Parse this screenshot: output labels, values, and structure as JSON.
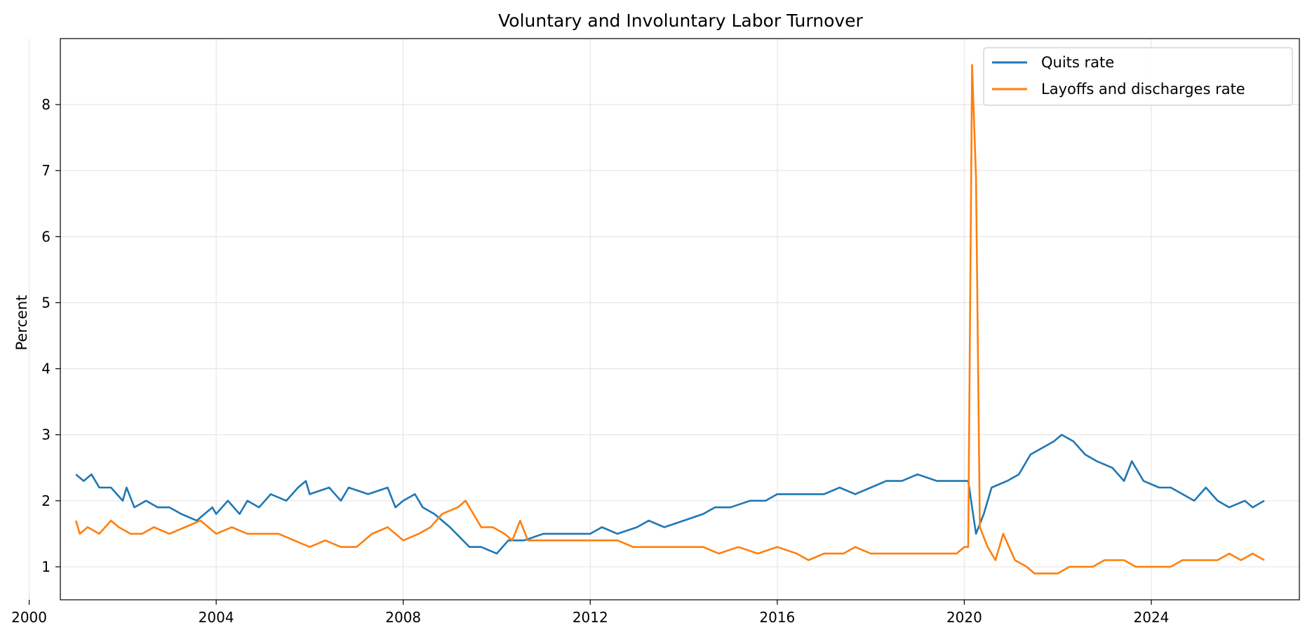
{
  "colors": {
    "quits": "#1f77b4",
    "layoffs": "#ff7f0e",
    "grid": "#e6e6e6",
    "axis": "#000000"
  },
  "chart_data": {
    "type": "line",
    "title": "Voluntary and Involuntary Labor Turnover",
    "xlabel": "",
    "ylabel": "Percent",
    "xlim": [
      "2000-09",
      "2027-03"
    ],
    "ylim": [
      0.5,
      9.0
    ],
    "x_ticks": [
      {
        "label": "2000",
        "value": "2000-01"
      },
      {
        "label": "2004",
        "value": "2004-01"
      },
      {
        "label": "2008",
        "value": "2008-01"
      },
      {
        "label": "2012",
        "value": "2012-01"
      },
      {
        "label": "2016",
        "value": "2016-01"
      },
      {
        "label": "2020",
        "value": "2020-01"
      },
      {
        "label": "2024",
        "value": "2024-01"
      }
    ],
    "y_ticks": [
      {
        "label": "1",
        "value": 1
      },
      {
        "label": "2",
        "value": 2
      },
      {
        "label": "3",
        "value": 3
      },
      {
        "label": "4",
        "value": 4
      },
      {
        "label": "5",
        "value": 5
      },
      {
        "label": "6",
        "value": 6
      },
      {
        "label": "7",
        "value": 7
      },
      {
        "label": "8",
        "value": 8
      }
    ],
    "grid": true,
    "legend_position": "top-right",
    "series": [
      {
        "name": "Quits rate",
        "color": "#1f77b4",
        "points": [
          [
            "2001-01",
            2.4
          ],
          [
            "2001-03",
            2.3
          ],
          [
            "2001-05",
            2.4
          ],
          [
            "2001-07",
            2.2
          ],
          [
            "2001-10",
            2.2
          ],
          [
            "2002-01",
            2.0
          ],
          [
            "2002-02",
            2.2
          ],
          [
            "2002-04",
            1.9
          ],
          [
            "2002-07",
            2.0
          ],
          [
            "2002-10",
            1.9
          ],
          [
            "2003-01",
            1.9
          ],
          [
            "2003-04",
            1.8
          ],
          [
            "2003-08",
            1.7
          ],
          [
            "2003-12",
            1.9
          ],
          [
            "2004-01",
            1.8
          ],
          [
            "2004-04",
            2.0
          ],
          [
            "2004-07",
            1.8
          ],
          [
            "2004-09",
            2.0
          ],
          [
            "2004-12",
            1.9
          ],
          [
            "2005-03",
            2.1
          ],
          [
            "2005-07",
            2.0
          ],
          [
            "2005-10",
            2.2
          ],
          [
            "2005-12",
            2.3
          ],
          [
            "2006-01",
            2.1
          ],
          [
            "2006-06",
            2.2
          ],
          [
            "2006-09",
            2.0
          ],
          [
            "2006-11",
            2.2
          ],
          [
            "2007-04",
            2.1
          ],
          [
            "2007-09",
            2.2
          ],
          [
            "2007-11",
            1.9
          ],
          [
            "2008-01",
            2.0
          ],
          [
            "2008-04",
            2.1
          ],
          [
            "2008-06",
            1.9
          ],
          [
            "2008-09",
            1.8
          ],
          [
            "2009-01",
            1.6
          ],
          [
            "2009-06",
            1.3
          ],
          [
            "2009-09",
            1.3
          ],
          [
            "2010-01",
            1.2
          ],
          [
            "2010-04",
            1.4
          ],
          [
            "2010-08",
            1.4
          ],
          [
            "2011-01",
            1.5
          ],
          [
            "2011-06",
            1.5
          ],
          [
            "2012-01",
            1.5
          ],
          [
            "2012-04",
            1.6
          ],
          [
            "2012-08",
            1.5
          ],
          [
            "2013-01",
            1.6
          ],
          [
            "2013-04",
            1.7
          ],
          [
            "2013-08",
            1.6
          ],
          [
            "2014-01",
            1.7
          ],
          [
            "2014-06",
            1.8
          ],
          [
            "2014-09",
            1.9
          ],
          [
            "2015-01",
            1.9
          ],
          [
            "2015-06",
            2.0
          ],
          [
            "2015-10",
            2.0
          ],
          [
            "2016-01",
            2.1
          ],
          [
            "2016-07",
            2.1
          ],
          [
            "2017-01",
            2.1
          ],
          [
            "2017-05",
            2.2
          ],
          [
            "2017-09",
            2.1
          ],
          [
            "2018-01",
            2.2
          ],
          [
            "2018-05",
            2.3
          ],
          [
            "2018-09",
            2.3
          ],
          [
            "2019-01",
            2.4
          ],
          [
            "2019-06",
            2.3
          ],
          [
            "2019-12",
            2.3
          ],
          [
            "2020-02",
            2.3
          ],
          [
            "2020-03",
            1.9
          ],
          [
            "2020-04",
            1.5
          ],
          [
            "2020-06",
            1.8
          ],
          [
            "2020-08",
            2.2
          ],
          [
            "2020-12",
            2.3
          ],
          [
            "2021-03",
            2.4
          ],
          [
            "2021-06",
            2.7
          ],
          [
            "2021-09",
            2.8
          ],
          [
            "2021-12",
            2.9
          ],
          [
            "2022-02",
            3.0
          ],
          [
            "2022-05",
            2.9
          ],
          [
            "2022-08",
            2.7
          ],
          [
            "2022-11",
            2.6
          ],
          [
            "2023-03",
            2.5
          ],
          [
            "2023-06",
            2.3
          ],
          [
            "2023-08",
            2.6
          ],
          [
            "2023-11",
            2.3
          ],
          [
            "2024-03",
            2.2
          ],
          [
            "2024-06",
            2.2
          ],
          [
            "2024-09",
            2.1
          ],
          [
            "2024-12",
            2.0
          ],
          [
            "2025-03",
            2.2
          ],
          [
            "2025-06",
            2.0
          ],
          [
            "2025-09",
            1.9
          ],
          [
            "2026-01",
            2.0
          ],
          [
            "2026-03",
            1.9
          ],
          [
            "2026-06",
            2.0
          ]
        ]
      },
      {
        "name": "Layoffs and discharges rate",
        "color": "#ff7f0e",
        "points": [
          [
            "2001-01",
            1.7
          ],
          [
            "2001-02",
            1.5
          ],
          [
            "2001-04",
            1.6
          ],
          [
            "2001-07",
            1.5
          ],
          [
            "2001-10",
            1.7
          ],
          [
            "2001-12",
            1.6
          ],
          [
            "2002-03",
            1.5
          ],
          [
            "2002-06",
            1.5
          ],
          [
            "2002-09",
            1.6
          ],
          [
            "2003-01",
            1.5
          ],
          [
            "2003-05",
            1.6
          ],
          [
            "2003-09",
            1.7
          ],
          [
            "2004-01",
            1.5
          ],
          [
            "2004-05",
            1.6
          ],
          [
            "2004-09",
            1.5
          ],
          [
            "2005-01",
            1.5
          ],
          [
            "2005-05",
            1.5
          ],
          [
            "2005-09",
            1.4
          ],
          [
            "2006-01",
            1.3
          ],
          [
            "2006-05",
            1.4
          ],
          [
            "2006-09",
            1.3
          ],
          [
            "2007-01",
            1.3
          ],
          [
            "2007-05",
            1.5
          ],
          [
            "2007-09",
            1.6
          ],
          [
            "2007-11",
            1.5
          ],
          [
            "2008-01",
            1.4
          ],
          [
            "2008-05",
            1.5
          ],
          [
            "2008-08",
            1.6
          ],
          [
            "2008-11",
            1.8
          ],
          [
            "2009-03",
            1.9
          ],
          [
            "2009-05",
            2.0
          ],
          [
            "2009-07",
            1.8
          ],
          [
            "2009-09",
            1.6
          ],
          [
            "2009-12",
            1.6
          ],
          [
            "2010-03",
            1.5
          ],
          [
            "2010-05",
            1.4
          ],
          [
            "2010-07",
            1.7
          ],
          [
            "2010-09",
            1.4
          ],
          [
            "2011-01",
            1.4
          ],
          [
            "2011-06",
            1.4
          ],
          [
            "2012-01",
            1.4
          ],
          [
            "2012-04",
            1.4
          ],
          [
            "2012-08",
            1.4
          ],
          [
            "2012-12",
            1.3
          ],
          [
            "2013-04",
            1.3
          ],
          [
            "2013-08",
            1.3
          ],
          [
            "2014-01",
            1.3
          ],
          [
            "2014-06",
            1.3
          ],
          [
            "2014-10",
            1.2
          ],
          [
            "2015-03",
            1.3
          ],
          [
            "2015-08",
            1.2
          ],
          [
            "2016-01",
            1.3
          ],
          [
            "2016-06",
            1.2
          ],
          [
            "2016-09",
            1.1
          ],
          [
            "2017-01",
            1.2
          ],
          [
            "2017-06",
            1.2
          ],
          [
            "2017-09",
            1.3
          ],
          [
            "2018-01",
            1.2
          ],
          [
            "2018-06",
            1.2
          ],
          [
            "2018-11",
            1.2
          ],
          [
            "2019-03",
            1.2
          ],
          [
            "2019-07",
            1.2
          ],
          [
            "2019-11",
            1.2
          ],
          [
            "2020-01",
            1.3
          ],
          [
            "2020-02",
            1.3
          ],
          [
            "2020-03",
            8.6
          ],
          [
            "2020-04",
            6.9
          ],
          [
            "2020-05",
            1.6
          ],
          [
            "2020-07",
            1.3
          ],
          [
            "2020-09",
            1.1
          ],
          [
            "2020-11",
            1.5
          ],
          [
            "2021-02",
            1.1
          ],
          [
            "2021-05",
            1.0
          ],
          [
            "2021-07",
            0.9
          ],
          [
            "2021-10",
            0.9
          ],
          [
            "2022-01",
            0.9
          ],
          [
            "2022-04",
            1.0
          ],
          [
            "2022-07",
            1.0
          ],
          [
            "2022-10",
            1.0
          ],
          [
            "2023-01",
            1.1
          ],
          [
            "2023-03",
            1.1
          ],
          [
            "2023-06",
            1.1
          ],
          [
            "2023-09",
            1.0
          ],
          [
            "2023-12",
            1.0
          ],
          [
            "2024-03",
            1.0
          ],
          [
            "2024-06",
            1.0
          ],
          [
            "2024-09",
            1.1
          ],
          [
            "2024-12",
            1.1
          ],
          [
            "2025-03",
            1.1
          ],
          [
            "2025-06",
            1.1
          ],
          [
            "2025-09",
            1.2
          ],
          [
            "2025-12",
            1.1
          ],
          [
            "2026-03",
            1.2
          ],
          [
            "2026-06",
            1.1
          ]
        ]
      }
    ]
  }
}
